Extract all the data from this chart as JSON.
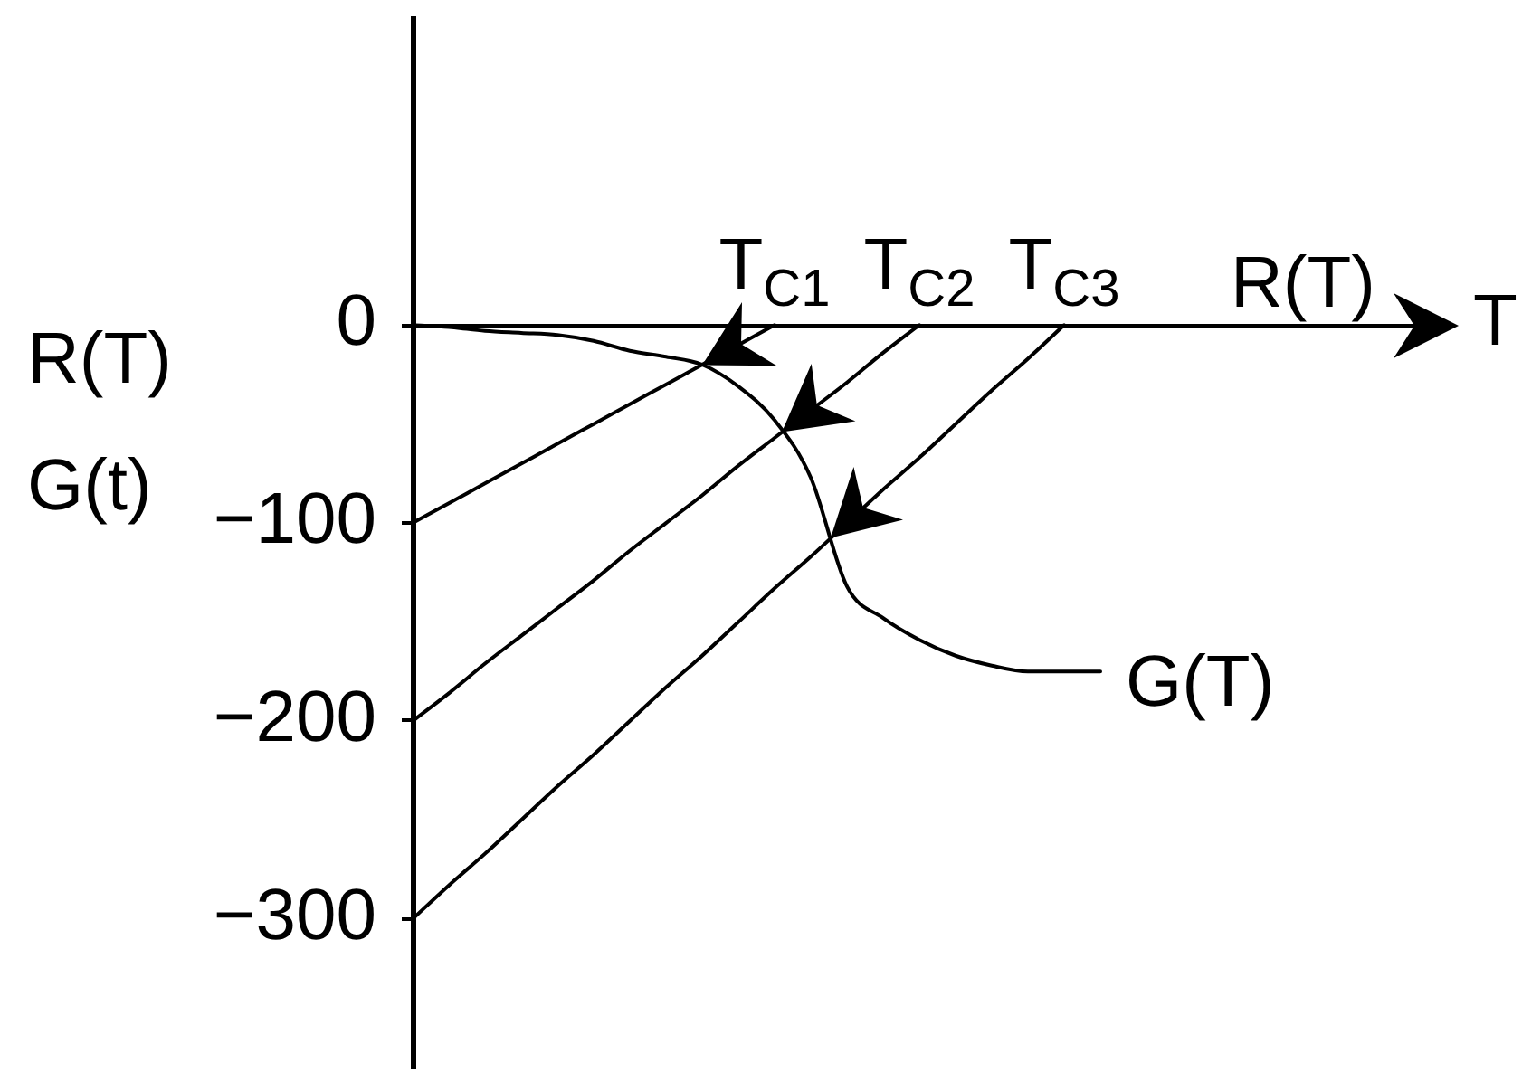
{
  "chart_data": {
    "type": "line",
    "xlabel": "T",
    "ylabel": "R(T) G(t)",
    "categories": [
      null,
      null,
      null,
      null,
      null,
      null,
      null,
      null,
      null,
      null,
      "T$_{C1}$",
      null,
      null,
      null,
      "T$_{C2}$",
      null,
      null,
      null,
      "T$_{C3}$",
      null,
      null,
      null,
      null,
      null,
      null,
      null,
      null,
      null,
      null
    ],
    "ylim": [
      -375,
      155
    ],
    "yticks": [
      -300,
      -200,
      -100,
      0
    ],
    "annotations": [
      "R(T)"
    ],
    "series": [
      {
        "color": "#000000",
        "values": [
          -100,
          -90,
          -80,
          -70,
          -60,
          -50,
          -40,
          -30,
          -20,
          -10,
          0,
          null,
          null,
          null,
          null,
          null,
          null,
          null,
          null,
          null,
          null,
          null,
          null,
          null,
          null,
          null,
          null,
          null,
          null
        ]
      },
      {
        "color": "#000000",
        "values": [
          -200,
          -186,
          -171,
          -157,
          -143,
          -129,
          -114,
          -100,
          -86,
          -71,
          -57,
          -43,
          -29,
          -14,
          0,
          null,
          null,
          null,
          null,
          null,
          null,
          null,
          null,
          null,
          null,
          null,
          null,
          null,
          null
        ]
      },
      {
        "color": "#000000",
        "values": [
          -300,
          -283,
          -267,
          -250,
          -233,
          -217,
          -200,
          -183,
          -167,
          -150,
          -133,
          -117,
          -100,
          -83,
          -67,
          -50,
          -33,
          -17,
          0,
          null,
          null,
          null,
          null,
          null,
          null,
          null,
          null,
          null,
          null
        ]
      },
      {
        "name": "G(T)",
        "color": "#000000",
        "values": [
          0,
          -1,
          -3,
          -4,
          -5,
          -8,
          -13,
          -16,
          -20,
          -31,
          -48,
          -77,
          -132,
          -148,
          -159,
          -167,
          -172,
          -175,
          -175,
          -175,
          null,
          null,
          null,
          null,
          null,
          null,
          null,
          null,
          null
        ]
      }
    ]
  }
}
